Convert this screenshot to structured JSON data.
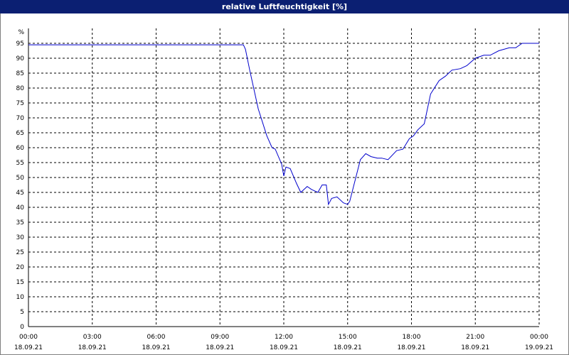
{
  "chart_data": {
    "type": "line",
    "title": "relative Luftfeuchtigkeit [%]",
    "y_unit_label": "%",
    "ylim": [
      0,
      100
    ],
    "y_ticks": [
      0,
      5,
      10,
      15,
      20,
      25,
      30,
      35,
      40,
      45,
      50,
      55,
      60,
      65,
      70,
      75,
      80,
      85,
      90,
      95
    ],
    "xlim_hours": [
      0,
      24
    ],
    "x_ticks": [
      {
        "time": "00:00",
        "date": "18.09.21",
        "hour": 0
      },
      {
        "time": "03:00",
        "date": "18.09.21",
        "hour": 3
      },
      {
        "time": "06:00",
        "date": "18.09.21",
        "hour": 6
      },
      {
        "time": "09:00",
        "date": "18.09.21",
        "hour": 9
      },
      {
        "time": "12:00",
        "date": "18.09.21",
        "hour": 12
      },
      {
        "time": "15:00",
        "date": "18.09.21",
        "hour": 15
      },
      {
        "time": "18:00",
        "date": "18.09.21",
        "hour": 18
      },
      {
        "time": "21:00",
        "date": "18.09.21",
        "hour": 21
      },
      {
        "time": "00:00",
        "date": "19.09.21",
        "hour": 24
      }
    ],
    "grid": true,
    "line_color": "#0000cc",
    "series": [
      {
        "x_hours": [
          0,
          10.1,
          10.2,
          10.4,
          10.8,
          11.2,
          11.45,
          11.6,
          11.9,
          12.0,
          12.1,
          12.3,
          12.6,
          12.8,
          13.1,
          13.3,
          13.6,
          13.8,
          14.0,
          14.1,
          14.25,
          14.5,
          14.8,
          15.0,
          15.1,
          15.35,
          15.6,
          15.85,
          16.1,
          16.4,
          16.6,
          16.9,
          17.3,
          17.6,
          17.9,
          18.1,
          18.3,
          18.6,
          18.9,
          19.3,
          19.6,
          19.9,
          20.3,
          20.6,
          21.0,
          21.4,
          21.7,
          22.1,
          22.6,
          22.9,
          23.2,
          23.6,
          24.0
        ],
        "y": [
          94.5,
          94.5,
          93,
          86,
          73,
          64,
          60,
          59.5,
          54.5,
          50.5,
          53.5,
          53,
          48,
          45,
          47,
          46,
          45,
          47.5,
          47.5,
          41,
          43,
          43.5,
          41.5,
          41,
          42,
          49,
          56,
          58,
          57,
          56.5,
          56.5,
          56,
          59,
          59.5,
          63,
          64,
          66,
          68,
          78,
          82.5,
          84,
          86,
          86.5,
          87.5,
          90,
          91,
          91,
          92.5,
          93.5,
          93.5,
          95,
          95,
          95
        ]
      }
    ]
  }
}
